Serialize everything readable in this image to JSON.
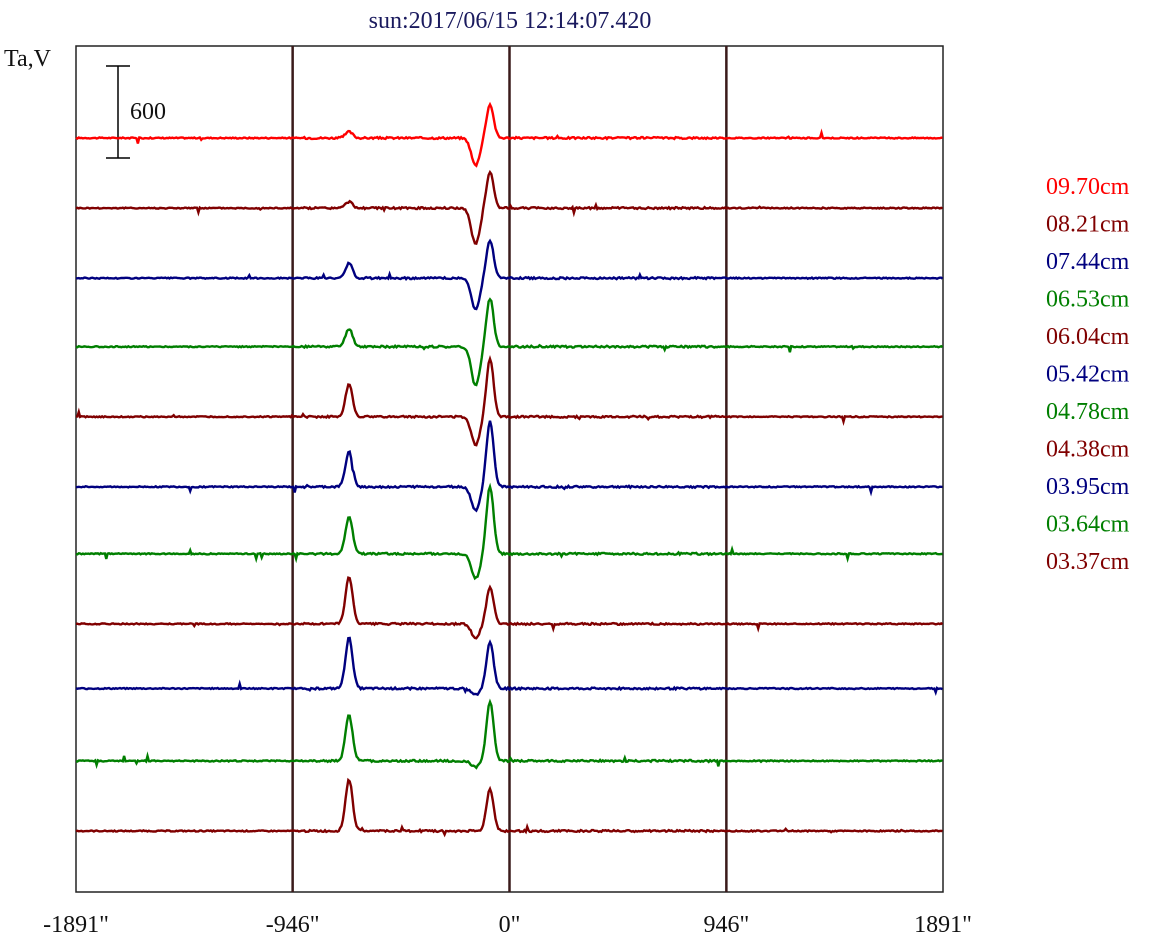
{
  "chart_data": {
    "type": "line",
    "title": "sun:2017/06/15 12:14:07.420",
    "ylabel": "Ta,V",
    "xlabel": "",
    "xlim": [
      -1891,
      1891
    ],
    "x_ticks": [
      -1891,
      -946,
      0,
      946,
      1891
    ],
    "x_tick_labels": [
      "-1891\"",
      "-946\"",
      "0\"",
      "946\"",
      "1891\""
    ],
    "vertical_lines": [
      -946,
      0,
      946
    ],
    "scale_bar": {
      "value": 600,
      "label": "600"
    },
    "grid": false,
    "legend_position": "right",
    "series": [
      {
        "name": "09.70cm",
        "color": "#ff0000",
        "baseline": 0,
        "peak1": 40,
        "peak2": 215,
        "dip": -175
      },
      {
        "name": "08.21cm",
        "color": "#800000",
        "baseline": -450,
        "peak1": 40,
        "peak2": 230,
        "dip": -230
      },
      {
        "name": "07.44cm",
        "color": "#00007f",
        "baseline": -900,
        "peak1": 95,
        "peak2": 245,
        "dip": -200
      },
      {
        "name": "06.53cm",
        "color": "#007f00",
        "baseline": -1340,
        "peak1": 115,
        "peak2": 310,
        "dip": -250
      },
      {
        "name": "06.04cm",
        "color": "#800000",
        "baseline": -1790,
        "peak1": 205,
        "peak2": 370,
        "dip": -180
      },
      {
        "name": "05.42cm",
        "color": "#00007f",
        "baseline": -2240,
        "peak1": 225,
        "peak2": 420,
        "dip": -150
      },
      {
        "name": "04.78cm",
        "color": "#007f00",
        "baseline": -2670,
        "peak1": 235,
        "peak2": 430,
        "dip": -160
      },
      {
        "name": "04.38cm",
        "color": "#800000",
        "baseline": -3120,
        "peak1": 300,
        "peak2": 235,
        "dip": -90
      },
      {
        "name": "03.95cm",
        "color": "#00007f",
        "baseline": -3535,
        "peak1": 325,
        "peak2": 300,
        "dip": -40
      },
      {
        "name": "03.64cm",
        "color": "#007f00",
        "baseline": -4000,
        "peak1": 290,
        "peak2": 380,
        "dip": -40
      },
      {
        "name": "03.37cm",
        "color": "#800000",
        "baseline": -4450,
        "peak1": 330,
        "peak2": 270,
        "dip": 0
      }
    ]
  }
}
